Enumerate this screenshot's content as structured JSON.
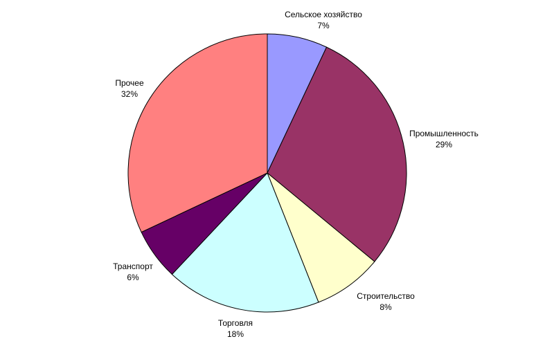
{
  "chart_data": {
    "type": "pie",
    "title": "",
    "legend": "none",
    "start_angle_deg": 0,
    "direction": "clockwise",
    "slices": [
      {
        "label": "Сельское хозяйство",
        "value": 7,
        "display": "7%",
        "color": "#9999ff"
      },
      {
        "label": "Промышленность",
        "value": 29,
        "display": "29%",
        "color": "#993366"
      },
      {
        "label": "Строительство",
        "value": 8,
        "display": "8%",
        "color": "#ffffcc"
      },
      {
        "label": "Торговля",
        "value": 18,
        "display": "18%",
        "color": "#ccffff"
      },
      {
        "label": "Транспорт",
        "value": 6,
        "display": "6%",
        "color": "#660066"
      },
      {
        "label": "Прочее",
        "value": 32,
        "display": "32%",
        "color": "#ff8080"
      }
    ]
  }
}
